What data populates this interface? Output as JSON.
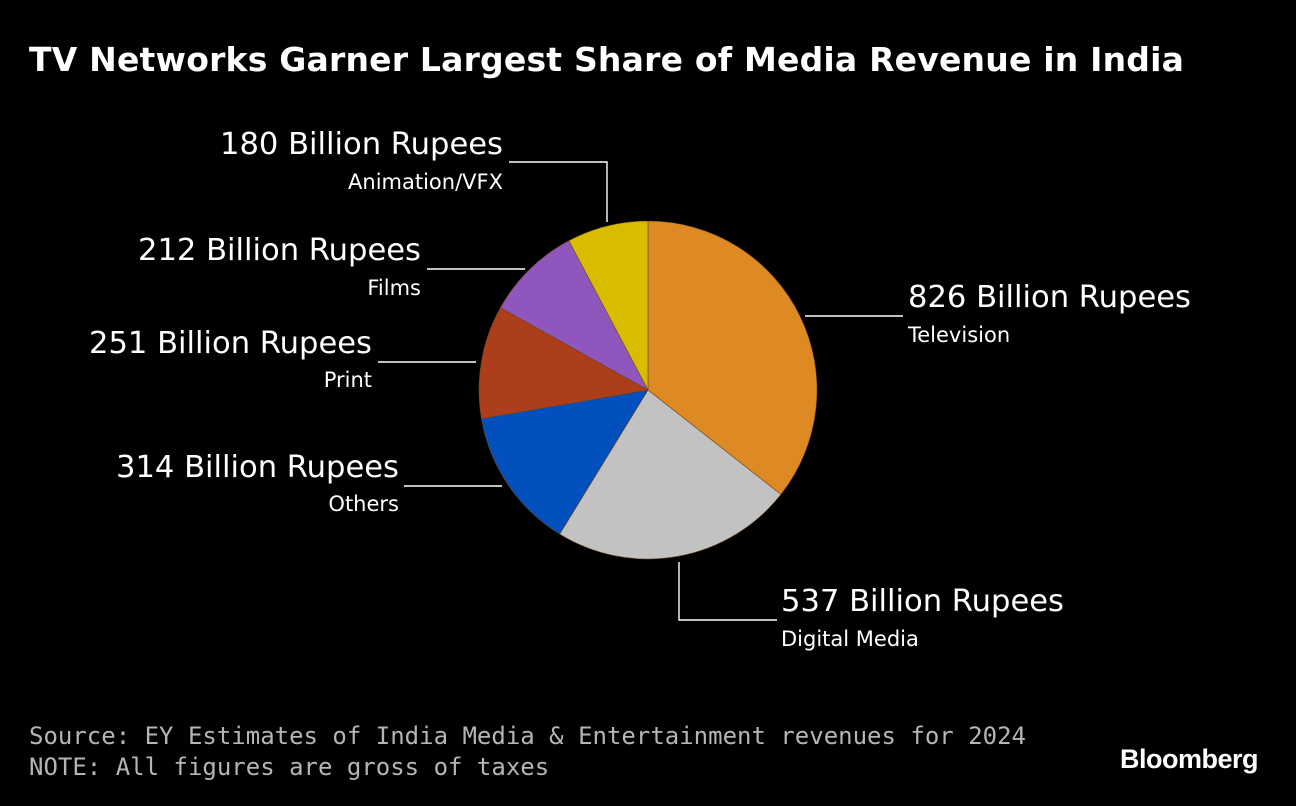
{
  "title": "TV Networks Garner Largest Share of Media Revenue in India",
  "source": "Source: EY Estimates of India Media & Entertainment revenues for 2024",
  "note": "NOTE: All figures are gross of taxes",
  "brand": "Bloomberg",
  "chart_data": {
    "type": "pie",
    "title": "TV Networks Garner Largest Share of Media Revenue in India",
    "unit": "Billion Rupees",
    "start": "12 o'clock, clockwise",
    "slices": [
      {
        "name": "Television",
        "value": 826,
        "label": "826 Billion Rupees",
        "color": "#de8a24"
      },
      {
        "name": "Digital Media",
        "value": 537,
        "label": "537 Billion Rupees",
        "color": "#c2c2c2"
      },
      {
        "name": "Others",
        "value": 314,
        "label": "314 Billion Rupees",
        "color": "#0250be"
      },
      {
        "name": "Print",
        "value": 251,
        "label": "251 Billion Rupees",
        "color": "#ad3e1c"
      },
      {
        "name": "Films",
        "value": 212,
        "label": "212 Billion Rupees",
        "color": "#8f56be"
      },
      {
        "name": "Animation/VFX",
        "value": 180,
        "label": "180 Billion Rupees",
        "color": "#d8bc00"
      }
    ]
  }
}
